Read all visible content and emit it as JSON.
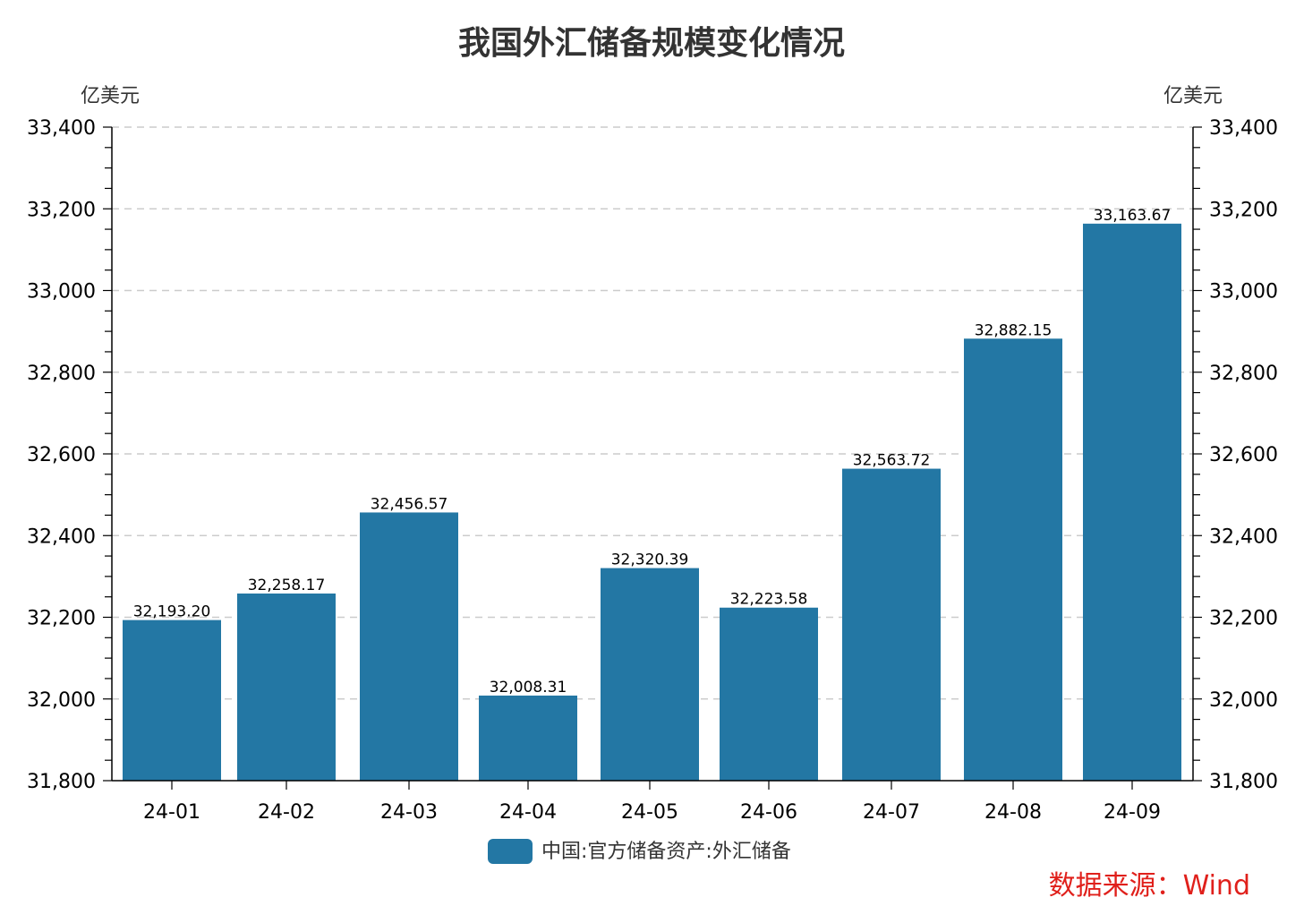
{
  "colors": {
    "bar": "#2377a4",
    "source": "#e0201b",
    "grid": "#cccccc",
    "axis": "#000000"
  },
  "chart_data": {
    "type": "bar",
    "title": "我国外汇储备规模变化情况",
    "y_unit_left": "亿美元",
    "y_unit_right": "亿美元",
    "categories": [
      "24-01",
      "24-02",
      "24-03",
      "24-04",
      "24-05",
      "24-06",
      "24-07",
      "24-08",
      "24-09"
    ],
    "series": [
      {
        "name": "中国:官方储备资产:外汇储备",
        "values": [
          32193.2,
          32258.17,
          32456.57,
          32008.31,
          32320.39,
          32223.58,
          32563.72,
          32882.15,
          33163.67
        ]
      }
    ],
    "data_labels": [
      "32,193.20",
      "32,258.17",
      "32,456.57",
      "32,008.31",
      "32,320.39",
      "32,223.58",
      "32,563.72",
      "32,882.15",
      "33,163.67"
    ],
    "ylim": [
      31800,
      33400
    ],
    "yticks": [
      31800,
      32000,
      32200,
      32400,
      32600,
      32800,
      33000,
      33200,
      33400
    ],
    "ytick_labels": [
      "31,800",
      "32,000",
      "32,200",
      "32,400",
      "32,600",
      "32,800",
      "33,000",
      "33,200",
      "33,400"
    ],
    "grid": true,
    "legend": "bottom-center"
  },
  "source_text": "数据来源：Wind"
}
